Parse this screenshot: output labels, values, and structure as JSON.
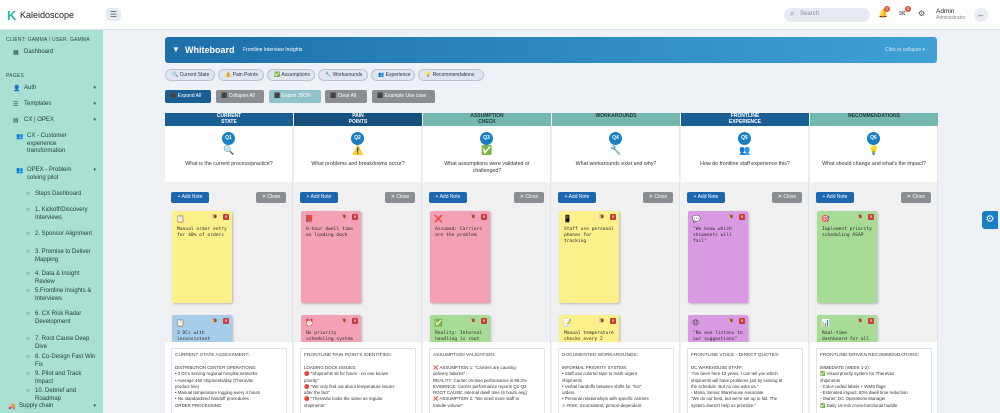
{
  "app": {
    "logo_mark": "K",
    "name": "Kaleidoscope",
    "menu_icon": "☰"
  },
  "topbar": {
    "search_placeholder": "Search",
    "notif_count": "2",
    "msg_count": "0",
    "user_name": "Admin",
    "user_role": "Administrator"
  },
  "sidebar": {
    "client": "CLIENT: GAMMA / USER: GAMMA",
    "dashboard": "Dashboard",
    "pages_head": "PAGES",
    "auth": "Auth",
    "templates": "Templates",
    "cx_opex": "CX | OPEX",
    "cx_transformation": "CX - Customer experience transformation",
    "opex_pilot": "OPEX - Problem solving pilot",
    "sub": [
      "Steps Dashboard",
      "1. Kickoff/Discovery Interviews",
      "2. Sponsor Alignment",
      "3. Promise to Deliver Mapping",
      "4. Data & Insight Review",
      "5.Frontline Insights & Interviews",
      "6. CX Risk Radar Development",
      "7. Root Cause Deep Dive",
      "8. Co-Design Fast Win Fix",
      "9. Pilot and Track Impact",
      "10. Debrief and Roadmap"
    ],
    "supply_chain": "Supply chain"
  },
  "whiteboard": {
    "toggle": "▼",
    "title": "Whiteboard",
    "subtitle": "Frontline Interview Insights",
    "collapse": "Click to collapse ▾"
  },
  "filters": [
    {
      "label": "🔍 Current State"
    },
    {
      "label": "⚠️ Pain Points"
    },
    {
      "label": "✅ Assumptions"
    },
    {
      "label": "🔧 Workarounds"
    },
    {
      "label": "👥 Experience"
    },
    {
      "label": "💡 Recommendations"
    }
  ],
  "actions": {
    "expand_all": "⬛ Expand All",
    "collapse_all": "⬛ Collapse All",
    "export_json": "⬛ Export JSON",
    "clear_all": "⬛ Clear All",
    "example": "⬛ Example Use case"
  },
  "columns": [
    {
      "header": "CURRENT\nSTATE",
      "head_color": "#1a5f94",
      "q": "Q1",
      "emoji": "🔍",
      "question": "What is the current process/practice?",
      "notes": [
        {
          "icon": "📋",
          "emoji": "🐌",
          "text": "Manual order entry for 40% of orders",
          "color": "#fbf08a"
        },
        {
          "icon": "📋",
          "emoji": "🐌",
          "text": "3 DCs with inconsistent",
          "color": "#a6cdea"
        }
      ],
      "summary_title": "CURRENT STATE ASSESSMENT:",
      "summary": [
        "DISTRIBUTION CENTER OPERATIONS:",
        "• 3 DCs serving regional hospital networks",
        "• Average 450 shipments/day (TheraVax",
        "  product line)",
        "• Manual temperature logging every 4 hours",
        "• No standardized handoff procedures",
        "",
        "ORDER PROCESSING:"
      ]
    },
    {
      "header": "PAIN\nPOINTS",
      "head_color": "#16507f",
      "q": "Q2",
      "emoji": "⚠️",
      "question": "What problems and breakdowns occur?",
      "notes": [
        {
          "icon": "📕",
          "emoji": "🐌",
          "text": "6-hour dwell time on loading dock",
          "color": "#f4a0b5"
        },
        {
          "icon": "⏰",
          "emoji": "🐌",
          "text": "No priority scheduling system",
          "color": "#f4a0b5"
        }
      ],
      "summary_title": "FRONTLINE PAIN POINTS IDENTIFIED:",
      "summary": [
        "LOADING DOCK ISSUES:",
        "🔴 \"Shipments sit for hours - no one knows",
        "  priority\"",
        "🔴 \"We only find out about temperature issues",
        "  after the fact\"",
        "🔴 \"TheraVax looks the same as regular",
        "  shipments\""
      ]
    },
    {
      "header": "ASSUMPTION\nCHECK",
      "head_color": "#74b7ad",
      "q": "Q3",
      "emoji": "✅",
      "question": "What assumptions were validated or challenged?",
      "notes": [
        {
          "icon": "❌",
          "emoji": "🐌",
          "text": "Assumed: Carriers are the problem",
          "color": "#f4a0b5"
        },
        {
          "icon": "✅",
          "emoji": "🐌",
          "text": "Reality: Internal handling is root cause",
          "color": "#a6dc95"
        }
      ],
      "summary_title": "ASSUMPTION VALIDATION:",
      "summary": [
        "❌ ASSUMPTION 1: \"Carriers are causing",
        "  delivery failures\"",
        "REALITY: Carrier on-time performance is 99.2%",
        "EVIDENCE: Carrier performance reports Q1-Q3",
        "ROOT CAUSE: Internal dwell time (6 hours avg)",
        "",
        "❌ ASSUMPTION 2: \"We need more staff to",
        "  handle volume\""
      ]
    },
    {
      "header": "WORKAROUNDS",
      "head_color": "#74b7ad",
      "q": "Q4",
      "emoji": "🔧",
      "question": "What workarounds exist and why?",
      "notes": [
        {
          "icon": "📱",
          "emoji": "🐌",
          "text": "Staff use personal phones for tracking",
          "color": "#fbf08a"
        },
        {
          "icon": "📝",
          "emoji": "🐌",
          "text": "Manual temperature checks every 2 hours",
          "color": "#fbf08a"
        }
      ],
      "summary_title": "DOCUMENTED WORKAROUNDS:",
      "summary": [
        "INFORMAL PRIORITY SYSTEM:",
        "• Staff use colored tape to mark urgent",
        "  shipments",
        "• Verbal handoffs between shifts for \"hot\"",
        "  orders",
        "• Personal relationships with specific carriers",
        "⚠ RISK: Inconsistent, person-dependent"
      ]
    },
    {
      "header": "FRONTLINE\nEXPERIENCE",
      "head_color": "#1a5f94",
      "q": "Q5",
      "emoji": "👥",
      "question": "How do frontline staff experience this?",
      "notes": [
        {
          "icon": "💬",
          "emoji": "🐌",
          "text": "\"We know which shipments will fail\"",
          "color": "#da99e3"
        },
        {
          "icon": "😞",
          "emoji": "🐌",
          "text": "\"No one listens to our suggestions\"",
          "color": "#da99e3"
        }
      ],
      "summary_title": "FRONTLINE VOICE - DIRECT QUOTES:",
      "summary": [
        "DC WAREHOUSE STAFF:",
        "\"I've been here 12 years. I can tell you which",
        "shipments will have problems just by looking at",
        "the schedule. But no one asks us.\"",
        "- Maria, Senior Warehouse Associate",
        "",
        "\"We do our best, but we're set up to fail. The",
        "system doesn't help us prioritize.\""
      ]
    },
    {
      "header": "RECOMMENDATIONS",
      "head_color": "#74b7ad",
      "q": "Q6",
      "emoji": "💡",
      "question": "What should change and what's the impact?",
      "notes": [
        {
          "icon": "🎯",
          "emoji": "🐌",
          "text": "Implement priority scheduling ASAP",
          "color": "#a6dc95"
        },
        {
          "icon": "📊",
          "emoji": "🐌",
          "text": "Real-time dashboard for all staff",
          "color": "#a6dc95"
        }
      ],
      "summary_title": "FRONTLINE-DRIVEN RECOMMENDATIONS:",
      "summary": [
        "IMMEDIATE (WEEK 1-2):",
        "✅ Visual priority system for TheraVax",
        "  shipments",
        "  - Color-coded labels + WMS flags",
        "  - Estimated impact: 50% dwell time reduction",
        "  - Owner: DC Operations Manager",
        "",
        "✅ Daily 15-min cross-functional huddle"
      ]
    }
  ],
  "buttons": {
    "add_note": "+ Add Note",
    "close": "✕ Close"
  }
}
